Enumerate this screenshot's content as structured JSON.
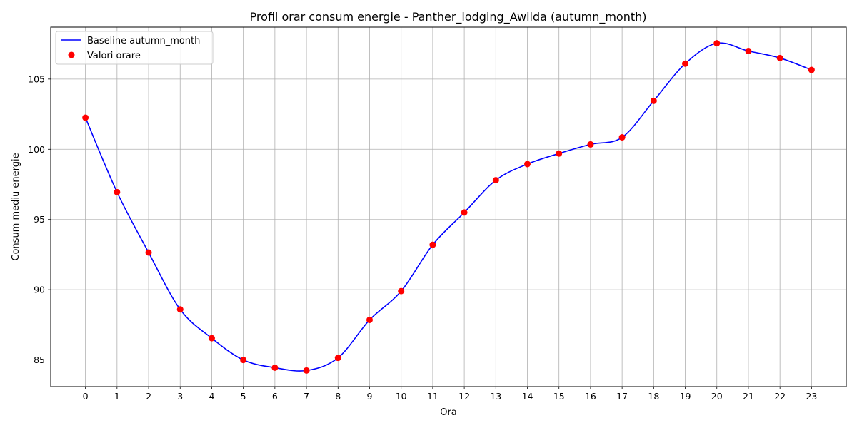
{
  "chart_data": {
    "type": "line",
    "title": "Profil orar consum energie - Panther_lodging_Awilda (autumn_month)",
    "xlabel": "Ora",
    "ylabel": "Consum mediu energie",
    "x": [
      0,
      1,
      2,
      3,
      4,
      5,
      6,
      7,
      8,
      9,
      10,
      11,
      12,
      13,
      14,
      15,
      16,
      17,
      18,
      19,
      20,
      21,
      22,
      23
    ],
    "xlim": [
      -1.1,
      24.1
    ],
    "ylim": [
      83.1,
      108.7
    ],
    "yticks": [
      85,
      90,
      95,
      100,
      105
    ],
    "grid": true,
    "legend_position": "top-left",
    "series": [
      {
        "name": "Baseline autumn_month",
        "kind": "line",
        "color": "#0000ff",
        "values": [
          102.25,
          96.95,
          92.65,
          88.6,
          86.55,
          85.0,
          84.45,
          84.25,
          85.15,
          87.85,
          89.9,
          93.2,
          95.5,
          97.8,
          98.95,
          99.7,
          100.35,
          100.85,
          103.45,
          106.1,
          107.55,
          107.0,
          106.5,
          105.65
        ]
      },
      {
        "name": "Valori orare",
        "kind": "scatter",
        "color": "#ff0000",
        "values": [
          102.25,
          96.95,
          92.65,
          88.6,
          86.55,
          85.0,
          84.45,
          84.25,
          85.15,
          87.85,
          89.9,
          93.2,
          95.5,
          97.8,
          98.95,
          99.7,
          100.35,
          100.85,
          103.45,
          106.1,
          107.55,
          107.0,
          106.5,
          105.65
        ]
      }
    ]
  }
}
